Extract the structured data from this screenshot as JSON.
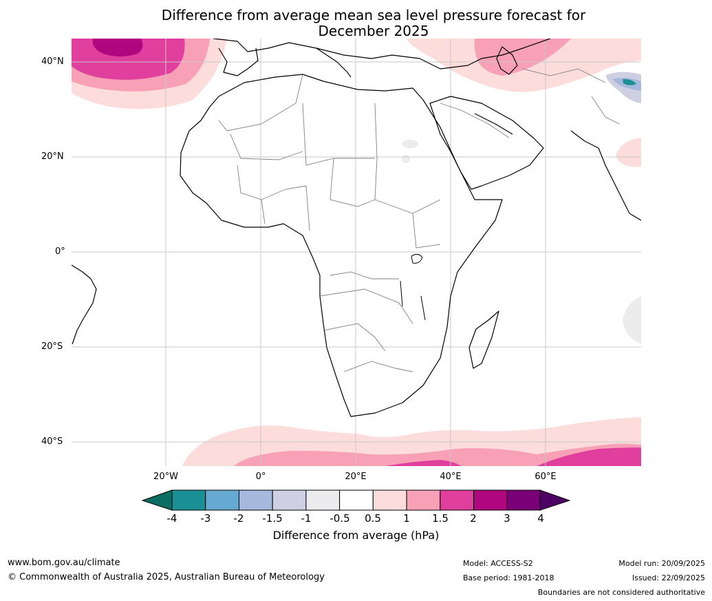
{
  "title": {
    "line1": "Difference from average mean sea level pressure forecast for",
    "line2": "December 2025"
  },
  "map": {
    "lat_labels": [
      "40°N",
      "20°N",
      "0°",
      "20°S",
      "40°S"
    ],
    "lon_labels": [
      "20°W",
      "0°",
      "20°E",
      "40°E",
      "60°E"
    ],
    "gridlines": true
  },
  "colorbar": {
    "label": "Difference from average (hPa)",
    "ticks": [
      "-4",
      "-3",
      "-2",
      "-1.5",
      "-1",
      "-0.5",
      "0.5",
      "1",
      "1.5",
      "2",
      "3",
      "4"
    ],
    "colors": [
      "#1a9096",
      "#67aad1",
      "#a6b9dc",
      "#cfcfe4",
      "#ececef",
      "#ffffff",
      "#fddcdc",
      "#f8a0b6",
      "#e03f9e",
      "#b0067e",
      "#7a0077"
    ],
    "extend_low_color": "#0a6f62",
    "extend_high_color": "#4b0062"
  },
  "footer": {
    "website": "www.bom.gov.au/climate",
    "copyright": "© Commonwealth of Australia 2025, Australian Bureau of Meteorology",
    "model": "Model: ACCESS-S2",
    "base_period": "Base period: 1981-2018",
    "model_run": "Model run: 20/09/2025",
    "issued": "Issued: 22/09/2025",
    "disclaimer": "Boundaries are not considered authoritative"
  },
  "palette": {
    "land_outline": "#000000",
    "border": "#808080",
    "grid": "#c8c8c8"
  }
}
